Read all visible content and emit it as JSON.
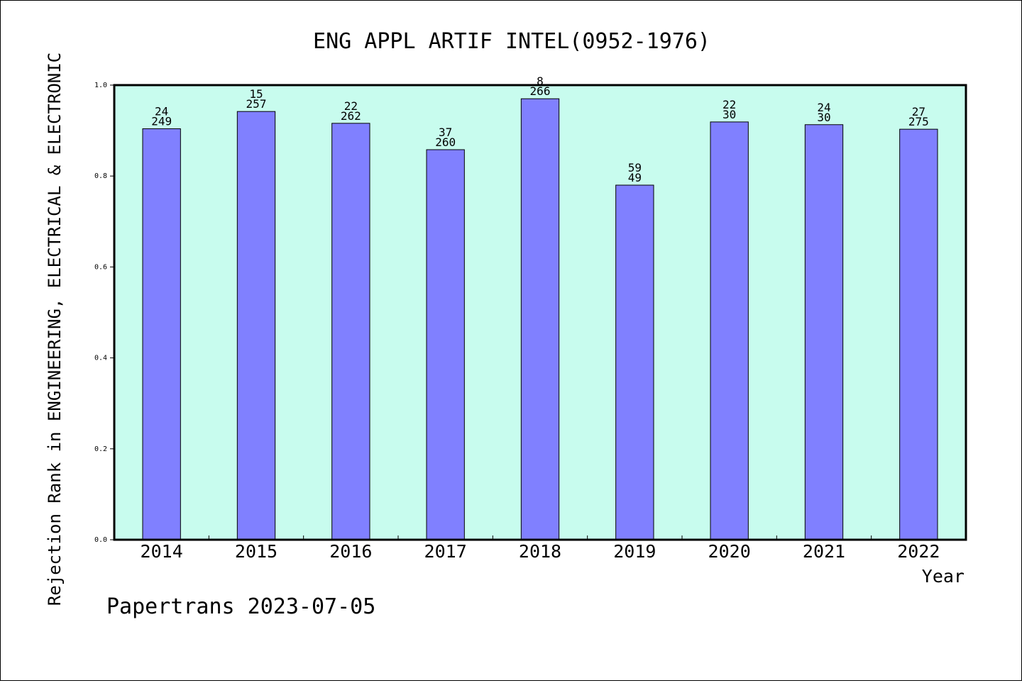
{
  "chart_data": {
    "type": "bar",
    "title": "ENG APPL ARTIF INTEL(0952-1976)",
    "xlabel": "Year",
    "ylabel": "Rejection Rank in ENGINEERING, ELECTRICAL & ELECTRONIC",
    "categories": [
      "2014",
      "2015",
      "2016",
      "2017",
      "2018",
      "2019",
      "2020",
      "2021",
      "2022"
    ],
    "values": [
      0.904,
      0.942,
      0.916,
      0.858,
      0.97,
      0.78,
      0.919,
      0.913,
      0.903
    ],
    "labels_top": [
      "24",
      "15",
      "22",
      "37",
      "8",
      "59",
      "22",
      "24",
      "27"
    ],
    "labels_bottom": [
      "249",
      "257",
      "262",
      "260",
      "266",
      "49",
      "30",
      "30",
      "275"
    ],
    "ylim": [
      0,
      1.0
    ],
    "yticks": [
      "0.0",
      "0.2",
      "0.4",
      "0.6",
      "0.8",
      "1.0"
    ],
    "grid": false,
    "colors": {
      "plot_background": "#c8fcee",
      "bar_fill": "#8080ff",
      "bar_stroke": "#000000"
    }
  },
  "footer": {
    "credit": "Papertrans 2023-07-05"
  }
}
